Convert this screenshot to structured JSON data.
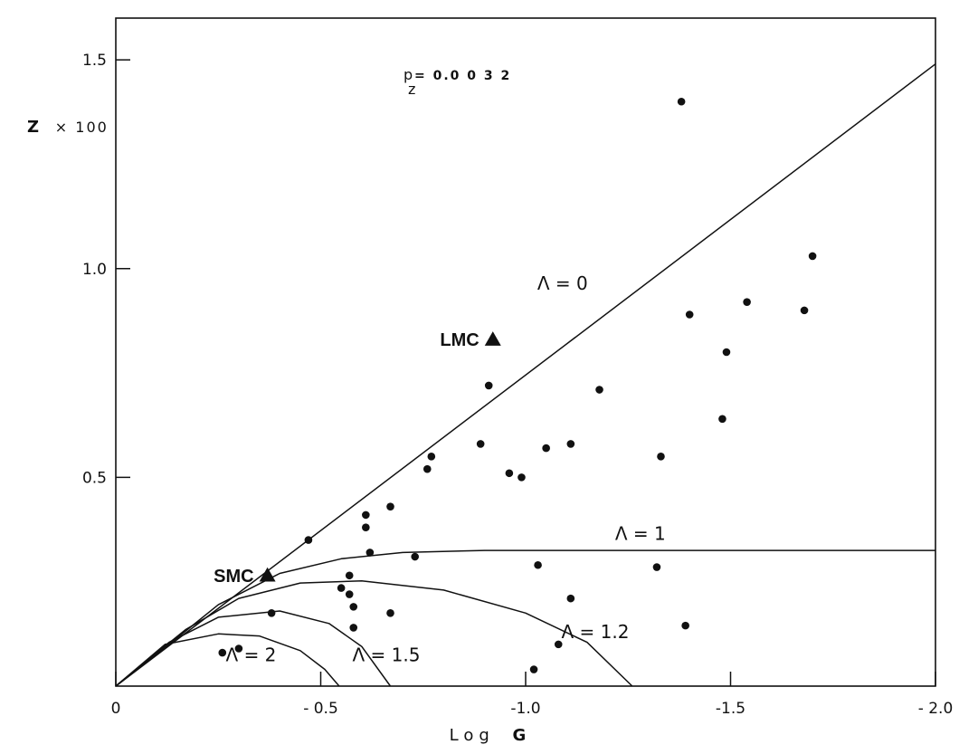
{
  "chart_data": {
    "type": "scatter",
    "title": "",
    "xlabel_prefix": "Log",
    "xlabel_symbol": "G",
    "ylabel_symbol": "Z",
    "ylabel_suffix": "× 100",
    "xlim": [
      0,
      -2.0
    ],
    "ylim": [
      0,
      1.6
    ],
    "x_ticks": [
      {
        "value": 0,
        "label": "0"
      },
      {
        "value": -0.5,
        "label": "- 0.5"
      },
      {
        "value": -1.0,
        "label": "-1.0"
      },
      {
        "value": -1.5,
        "label": "-1.5"
      },
      {
        "value": -2.0,
        "label": "- 2.0"
      }
    ],
    "y_ticks": [
      {
        "value": 0.5,
        "label": "0.5"
      },
      {
        "value": 1.0,
        "label": "1.0"
      },
      {
        "value": 1.5,
        "label": "1.5"
      }
    ],
    "annotation": {
      "label": "p",
      "value": "= 0.0 0 3 2",
      "subscript": "z"
    },
    "curves": [
      {
        "name": "Λ = 0",
        "label": "Λ = 0",
        "label_at": {
          "x": -1.09,
          "y": 0.95
        },
        "points": [
          [
            0,
            0
          ],
          [
            -2.0,
            1.49
          ]
        ]
      },
      {
        "name": "Λ = 1",
        "label": "Λ = 1",
        "label_at": {
          "x": -1.28,
          "y": 0.35
        },
        "points": [
          [
            0,
            0
          ],
          [
            -0.13,
            0.1
          ],
          [
            -0.25,
            0.195
          ],
          [
            -0.4,
            0.27
          ],
          [
            -0.55,
            0.305
          ],
          [
            -0.7,
            0.32
          ],
          [
            -0.9,
            0.325
          ],
          [
            -2.0,
            0.325
          ]
        ]
      },
      {
        "name": "Λ = 1.2",
        "label": "Λ = 1.2",
        "label_at": {
          "x": -1.17,
          "y": 0.115
        },
        "points": [
          [
            0,
            0
          ],
          [
            -0.17,
            0.135
          ],
          [
            -0.3,
            0.21
          ],
          [
            -0.45,
            0.247
          ],
          [
            -0.6,
            0.252
          ],
          [
            -0.8,
            0.23
          ],
          [
            -1.0,
            0.175
          ],
          [
            -1.15,
            0.105
          ],
          [
            -1.26,
            0
          ]
        ]
      },
      {
        "name": "Λ = 1.5",
        "label": "Λ = 1.5",
        "label_at": {
          "x": -0.66,
          "y": 0.06
        },
        "points": [
          [
            0,
            0
          ],
          [
            -0.13,
            0.105
          ],
          [
            -0.25,
            0.165
          ],
          [
            -0.4,
            0.18
          ],
          [
            -0.52,
            0.15
          ],
          [
            -0.6,
            0.095
          ],
          [
            -0.67,
            0
          ]
        ]
      },
      {
        "name": "Λ = 2",
        "label": "Λ = 2",
        "label_at": {
          "x": -0.33,
          "y": 0.06
        },
        "points": [
          [
            0,
            0
          ],
          [
            -0.12,
            0.1
          ],
          [
            -0.25,
            0.125
          ],
          [
            -0.35,
            0.12
          ],
          [
            -0.45,
            0.085
          ],
          [
            -0.51,
            0.04
          ],
          [
            -0.545,
            0
          ]
        ]
      }
    ],
    "series": [
      {
        "marker": "dot",
        "points": [
          [
            -1.38,
            1.4
          ],
          [
            -1.7,
            1.03
          ],
          [
            -1.54,
            0.92
          ],
          [
            -1.68,
            0.9
          ],
          [
            -1.4,
            0.89
          ],
          [
            -1.49,
            0.8
          ],
          [
            -0.91,
            0.72
          ],
          [
            -1.18,
            0.71
          ],
          [
            -1.48,
            0.64
          ],
          [
            -0.89,
            0.58
          ],
          [
            -1.11,
            0.58
          ],
          [
            -1.05,
            0.57
          ],
          [
            -0.77,
            0.55
          ],
          [
            -0.76,
            0.52
          ],
          [
            -1.33,
            0.55
          ],
          [
            -0.96,
            0.51
          ],
          [
            -0.99,
            0.5
          ],
          [
            -0.67,
            0.43
          ],
          [
            -0.61,
            0.41
          ],
          [
            -0.61,
            0.38
          ],
          [
            -0.47,
            0.35
          ],
          [
            -0.62,
            0.32
          ],
          [
            -0.73,
            0.31
          ],
          [
            -1.03,
            0.29
          ],
          [
            -1.32,
            0.285
          ],
          [
            -0.57,
            0.265
          ],
          [
            -0.55,
            0.235
          ],
          [
            -0.57,
            0.22
          ],
          [
            -0.58,
            0.19
          ],
          [
            -1.11,
            0.21
          ],
          [
            -0.38,
            0.175
          ],
          [
            -0.67,
            0.175
          ],
          [
            -0.58,
            0.14
          ],
          [
            -1.39,
            0.145
          ],
          [
            -1.08,
            0.1
          ],
          [
            -0.26,
            0.08
          ],
          [
            -0.3,
            0.09
          ],
          [
            -1.02,
            0.04
          ]
        ]
      },
      {
        "marker": "triangle",
        "points": [
          {
            "x": -0.92,
            "y": 0.83,
            "label": "LMC"
          },
          {
            "x": -0.37,
            "y": 0.265,
            "label": "SMC"
          }
        ]
      }
    ],
    "grid": false,
    "legend": "none"
  }
}
